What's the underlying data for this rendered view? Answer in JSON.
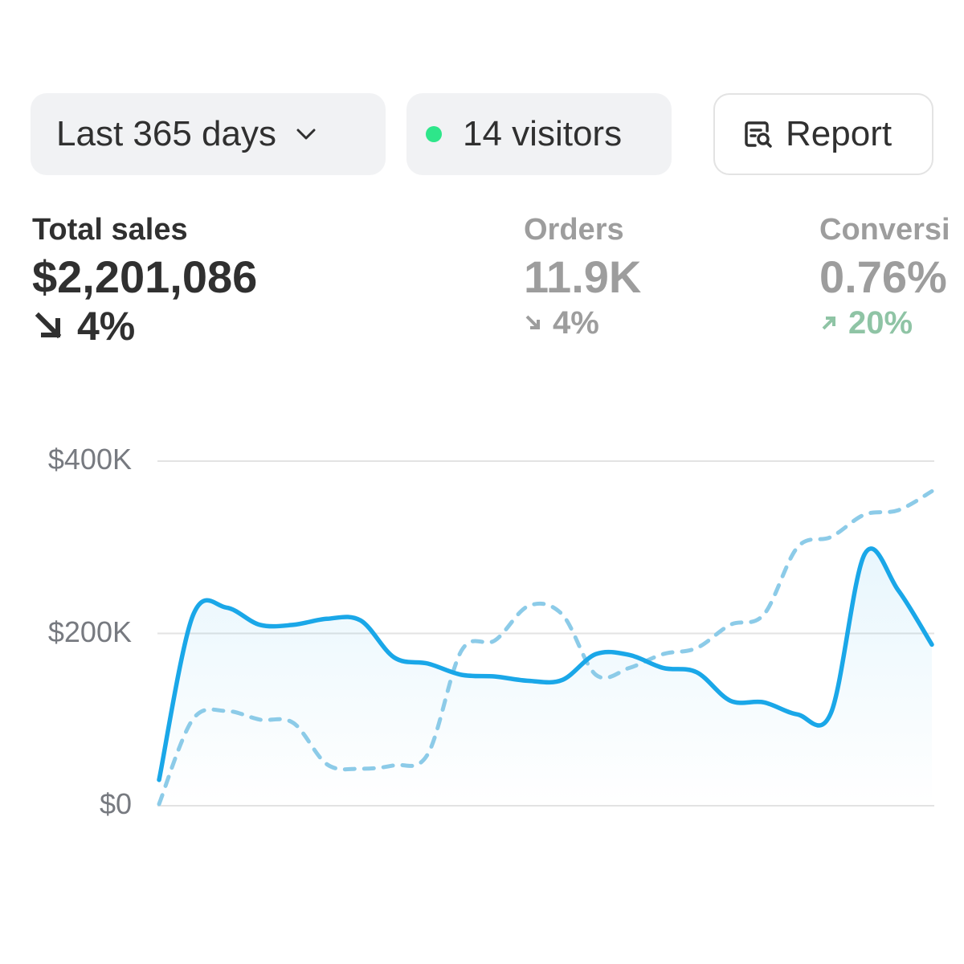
{
  "toolbar": {
    "range_label": "Last 365 days",
    "visitors_label": "14 visitors",
    "report_label": "Report"
  },
  "metrics": {
    "total_sales": {
      "label": "Total sales",
      "value": "$2,201,086",
      "delta": "4%",
      "direction": "down"
    },
    "orders": {
      "label": "Orders",
      "value": "11.9K",
      "delta": "4%",
      "direction": "down"
    },
    "conversion": {
      "label": "Conversi",
      "value": "0.76%",
      "delta": "20%",
      "direction": "up"
    }
  },
  "icons": {
    "range": "chevron-down-icon",
    "visitors": "status-dot-icon",
    "report": "report-search-icon"
  },
  "colors": {
    "current": "#1aa7e8",
    "previous": "#8ccbe8",
    "live_dot": "#2ee68a",
    "positive": "#8fc4a5"
  },
  "chart_data": {
    "type": "line",
    "ylim": [
      0,
      400000
    ],
    "y_ticks": [
      {
        "value": 0,
        "label": "$0"
      },
      {
        "value": 200000,
        "label": "$200K"
      },
      {
        "value": 400000,
        "label": "$400K"
      }
    ],
    "grid": true,
    "series": [
      {
        "style": "solid",
        "values": [
          30000,
          220000,
          230000,
          210000,
          210000,
          217000,
          215000,
          172000,
          165000,
          152000,
          150000,
          145000,
          146000,
          176000,
          175000,
          160000,
          155000,
          122000,
          120000,
          106000,
          108000,
          292000,
          250000,
          187000
        ]
      },
      {
        "style": "dashed",
        "values": [
          2000,
          100000,
          110000,
          100000,
          96000,
          48000,
          43000,
          47000,
          60000,
          180000,
          192000,
          232000,
          222000,
          152000,
          160000,
          176000,
          183000,
          210000,
          222000,
          300000,
          312000,
          338000,
          343000,
          365000
        ]
      }
    ]
  }
}
